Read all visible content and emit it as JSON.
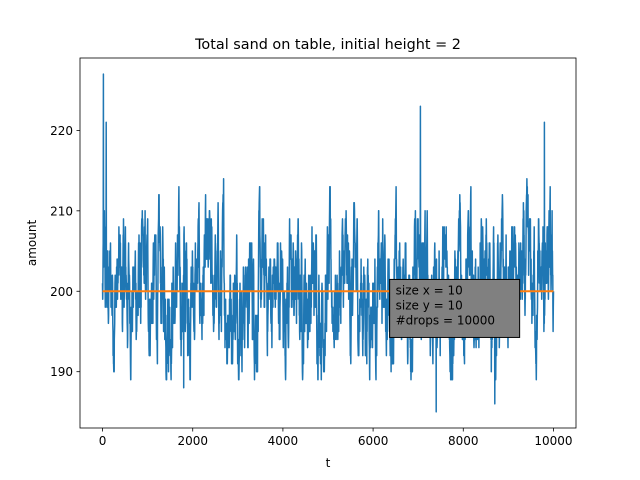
{
  "chart_data": {
    "type": "line",
    "title": "Total sand on table, initial height = 2",
    "xlabel": "t",
    "ylabel": "amount",
    "xlim": [
      -500,
      10500
    ],
    "ylim": [
      183,
      229
    ],
    "x_ticks": [
      0,
      2000,
      4000,
      6000,
      8000,
      10000
    ],
    "y_ticks": [
      190,
      200,
      210,
      220
    ],
    "x_tick_labels": [
      "0",
      "2000",
      "4000",
      "6000",
      "8000",
      "10000"
    ],
    "y_tick_labels": [
      "190",
      "200",
      "210",
      "220"
    ],
    "grid": false,
    "series": [
      {
        "color": "#1f77b4",
        "n_points": 10001,
        "x_start": 0,
        "x_end": 10000,
        "y_start": 200,
        "mean": 200,
        "min": 185,
        "max": 227,
        "extremes": [
          {
            "x": 20,
            "y": 227
          },
          {
            "x": 80,
            "y": 221
          },
          {
            "x": 7050,
            "y": 223
          },
          {
            "x": 9800,
            "y": 221
          },
          {
            "x": 7400,
            "y": 185
          },
          {
            "x": 8700,
            "y": 186
          },
          {
            "x": 1800,
            "y": 188
          }
        ]
      },
      {
        "color": "#ff7f0e",
        "x": [
          0,
          10000
        ],
        "y": [
          200,
          200
        ]
      }
    ],
    "annotation": {
      "lines": [
        "size x = 10",
        "size y = 10",
        "#drops = 10000"
      ],
      "box_fill": "#808080",
      "box_edge": "#000000",
      "anchor_x": 6500,
      "anchor_y": 196
    }
  }
}
